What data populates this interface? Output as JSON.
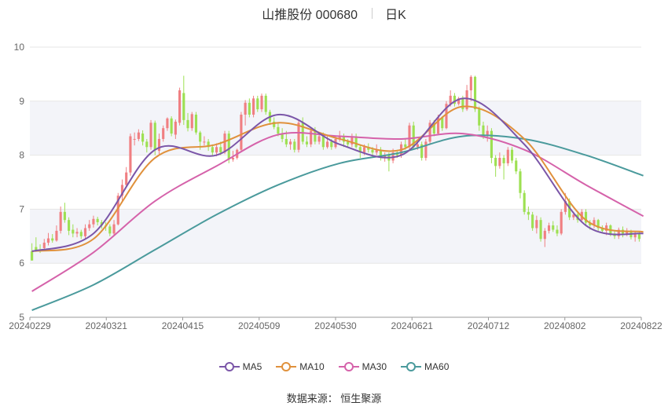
{
  "header": {
    "title": "山推股份 000680",
    "period": "日K"
  },
  "source": "数据来源： 恒生聚源",
  "colors": {
    "up": "#f07f82",
    "down": "#9de052",
    "MA5": "#7b56a8",
    "MA10": "#e0913c",
    "MA30": "#d562aa",
    "MA60": "#4a9a9c",
    "grid": "#e6e6e6",
    "band": "#f3f4f9",
    "axis": "#666666"
  },
  "chart_data": {
    "type": "candlestick",
    "ylim": [
      5,
      10
    ],
    "yticks": [
      "5",
      "6",
      "7",
      "8",
      "9",
      "10"
    ],
    "xlabels": [
      "20240229",
      "20240321",
      "20240415",
      "20240509",
      "20240530",
      "20240621",
      "20240712",
      "20240802",
      "20240822"
    ],
    "legend": [
      "MA5",
      "MA10",
      "MA30",
      "MA60"
    ],
    "candles": [
      [
        6.22,
        6.05,
        6.37,
        6.05
      ],
      [
        6.3,
        6.23,
        6.48,
        6.21
      ],
      [
        6.25,
        6.22,
        6.35,
        6.19
      ],
      [
        6.28,
        6.38,
        6.45,
        6.25
      ],
      [
        6.38,
        6.46,
        6.56,
        6.33
      ],
      [
        6.46,
        6.42,
        6.54,
        6.38
      ],
      [
        6.42,
        6.6,
        6.7,
        6.4
      ],
      [
        6.6,
        6.95,
        7.05,
        6.55
      ],
      [
        6.95,
        6.8,
        7.12,
        6.75
      ],
      [
        6.8,
        6.6,
        6.85,
        6.52
      ],
      [
        6.62,
        6.55,
        6.72,
        6.48
      ],
      [
        6.55,
        6.58,
        6.65,
        6.48
      ],
      [
        6.58,
        6.5,
        6.62,
        6.45
      ],
      [
        6.5,
        6.65,
        6.72,
        6.46
      ],
      [
        6.65,
        6.72,
        6.8,
        6.6
      ],
      [
        6.72,
        6.82,
        6.88,
        6.66
      ],
      [
        6.82,
        6.76,
        6.86,
        6.7
      ],
      [
        6.76,
        6.7,
        6.8,
        6.64
      ],
      [
        6.7,
        6.68,
        6.76,
        6.6
      ],
      [
        6.68,
        6.55,
        6.72,
        6.5
      ],
      [
        6.55,
        6.72,
        6.8,
        6.5
      ],
      [
        6.72,
        7.25,
        7.3,
        6.7
      ],
      [
        7.25,
        7.45,
        7.55,
        7.12
      ],
      [
        7.45,
        7.68,
        7.78,
        7.4
      ],
      [
        7.68,
        8.35,
        8.4,
        7.62
      ],
      [
        8.3,
        8.3,
        8.42,
        8.18
      ],
      [
        8.3,
        8.42,
        8.48,
        8.26
      ],
      [
        8.4,
        8.25,
        8.46,
        8.18
      ],
      [
        8.25,
        8.15,
        8.3,
        8.05
      ],
      [
        8.15,
        8.6,
        8.65,
        8.1
      ],
      [
        8.6,
        8.1,
        8.64,
        8.0
      ],
      [
        8.08,
        8.3,
        8.4,
        8.02
      ],
      [
        8.3,
        8.5,
        8.55,
        8.25
      ],
      [
        8.5,
        8.68,
        8.7,
        8.45
      ],
      [
        8.68,
        8.4,
        8.72,
        8.35
      ],
      [
        8.38,
        8.62,
        8.66,
        8.3
      ],
      [
        8.6,
        9.2,
        9.25,
        8.55
      ],
      [
        9.15,
        8.65,
        9.47,
        8.56
      ],
      [
        8.65,
        8.5,
        8.78,
        8.44
      ],
      [
        8.5,
        8.76,
        8.8,
        8.45
      ],
      [
        8.75,
        8.42,
        8.8,
        8.38
      ],
      [
        8.42,
        8.25,
        8.45,
        8.1
      ],
      [
        8.25,
        8.25,
        8.35,
        8.18
      ],
      [
        8.25,
        8.15,
        8.3,
        8.08
      ],
      [
        8.15,
        8.05,
        8.2,
        7.98
      ],
      [
        8.05,
        8.15,
        8.22,
        7.98
      ],
      [
        8.15,
        8.05,
        8.25,
        8.0
      ],
      [
        8.05,
        8.4,
        8.45,
        8.02
      ],
      [
        8.4,
        7.92,
        8.45,
        7.85
      ],
      [
        7.92,
        7.95,
        8.08,
        7.88
      ],
      [
        7.95,
        8.1,
        8.12,
        7.92
      ],
      [
        8.1,
        8.75,
        8.8,
        8.08
      ],
      [
        8.75,
        8.97,
        9.02,
        8.55
      ],
      [
        8.97,
        8.75,
        9.05,
        8.7
      ],
      [
        8.75,
        9.05,
        9.1,
        8.7
      ],
      [
        9.05,
        8.85,
        9.1,
        8.8
      ],
      [
        8.85,
        9.1,
        9.14,
        8.8
      ],
      [
        9.1,
        8.8,
        9.14,
        8.75
      ],
      [
        8.8,
        8.62,
        8.84,
        8.56
      ],
      [
        8.62,
        8.52,
        8.7,
        8.48
      ],
      [
        8.52,
        8.4,
        8.6,
        8.35
      ],
      [
        8.4,
        8.3,
        8.5,
        8.24
      ],
      [
        8.3,
        8.2,
        8.45,
        8.15
      ],
      [
        8.2,
        8.25,
        8.3,
        8.1
      ],
      [
        8.25,
        8.1,
        8.3,
        8.05
      ],
      [
        8.1,
        8.6,
        8.65,
        8.05
      ],
      [
        8.6,
        8.25,
        8.7,
        8.2
      ],
      [
        8.25,
        8.2,
        8.35,
        8.15
      ],
      [
        8.2,
        8.45,
        8.5,
        8.15
      ],
      [
        8.45,
        8.25,
        8.52,
        8.2
      ],
      [
        8.25,
        8.35,
        8.4,
        8.2
      ],
      [
        8.35,
        8.15,
        8.42,
        8.1
      ],
      [
        8.15,
        8.25,
        8.35,
        8.12
      ],
      [
        8.25,
        8.15,
        8.3,
        8.1
      ],
      [
        8.15,
        8.3,
        8.35,
        8.12
      ],
      [
        8.3,
        8.35,
        8.45,
        8.25
      ],
      [
        8.35,
        8.25,
        8.4,
        8.15
      ],
      [
        8.25,
        8.2,
        8.3,
        8.15
      ],
      [
        8.2,
        8.35,
        8.4,
        8.15
      ],
      [
        8.35,
        8.15,
        8.4,
        8.12
      ],
      [
        8.15,
        8.05,
        8.2,
        7.95
      ],
      [
        8.05,
        8.15,
        8.2,
        8.0
      ],
      [
        8.15,
        8.1,
        8.22,
        8.05
      ],
      [
        8.1,
        8.05,
        8.15,
        7.95
      ],
      [
        8.05,
        8.1,
        8.2,
        8.0
      ],
      [
        8.1,
        7.95,
        8.15,
        7.9
      ],
      [
        7.95,
        8.0,
        8.05,
        7.88
      ],
      [
        8.0,
        7.9,
        8.05,
        7.7
      ],
      [
        7.9,
        8.05,
        8.12,
        7.85
      ],
      [
        8.05,
        8.0,
        8.1,
        7.95
      ],
      [
        8.0,
        8.2,
        8.25,
        7.95
      ],
      [
        8.2,
        8.15,
        8.3,
        8.1
      ],
      [
        8.15,
        8.55,
        8.6,
        8.1
      ],
      [
        8.55,
        8.15,
        8.62,
        8.1
      ],
      [
        8.15,
        8.2,
        8.25,
        8.1
      ],
      [
        8.2,
        7.95,
        8.25,
        7.9
      ],
      [
        7.95,
        8.25,
        8.3,
        7.9
      ],
      [
        8.25,
        8.6,
        8.65,
        8.2
      ],
      [
        8.6,
        8.4,
        8.65,
        8.35
      ],
      [
        8.4,
        8.7,
        8.75,
        8.38
      ],
      [
        8.7,
        8.5,
        8.72,
        8.45
      ],
      [
        8.5,
        8.95,
        9.0,
        8.48
      ],
      [
        8.95,
        9.1,
        9.2,
        8.9
      ],
      [
        9.1,
        8.95,
        9.15,
        8.9
      ],
      [
        8.95,
        9.05,
        9.08,
        8.92
      ],
      [
        9.05,
        8.85,
        9.1,
        8.8
      ],
      [
        8.85,
        9.2,
        9.3,
        8.82
      ],
      [
        9.2,
        9.45,
        9.48,
        9.0
      ],
      [
        9.45,
        8.85,
        9.47,
        8.8
      ],
      [
        8.85,
        8.55,
        8.9,
        8.45
      ],
      [
        8.55,
        8.35,
        8.62,
        8.3
      ],
      [
        8.35,
        8.45,
        8.55,
        8.25
      ],
      [
        8.45,
        7.95,
        8.5,
        7.85
      ],
      [
        7.95,
        7.8,
        8.0,
        7.6
      ],
      [
        7.8,
        7.95,
        8.05,
        7.75
      ],
      [
        7.95,
        7.85,
        8.0,
        7.55
      ],
      [
        7.85,
        8.1,
        8.15,
        7.8
      ],
      [
        8.1,
        7.9,
        8.15,
        7.85
      ],
      [
        7.9,
        7.7,
        7.95,
        7.65
      ],
      [
        7.7,
        7.3,
        7.75,
        7.2
      ],
      [
        7.3,
        6.95,
        7.35,
        6.9
      ],
      [
        6.95,
        6.9,
        7.05,
        6.8
      ],
      [
        6.9,
        6.65,
        6.95,
        6.6
      ],
      [
        6.65,
        6.8,
        6.88,
        6.55
      ],
      [
        6.8,
        6.45,
        6.85,
        6.4
      ],
      [
        6.45,
        6.6,
        6.65,
        6.3
      ],
      [
        6.6,
        6.7,
        6.75,
        6.55
      ],
      [
        6.7,
        6.62,
        6.78,
        6.58
      ],
      [
        6.62,
        6.55,
        6.7,
        6.5
      ],
      [
        6.55,
        6.95,
        7.0,
        6.52
      ],
      [
        6.95,
        7.15,
        7.3,
        6.9
      ],
      [
        7.15,
        6.85,
        7.2,
        6.8
      ],
      [
        6.85,
        6.9,
        6.95,
        6.8
      ],
      [
        6.9,
        6.8,
        6.96,
        6.75
      ],
      [
        6.8,
        6.95,
        7.0,
        6.75
      ],
      [
        6.95,
        6.75,
        7.0,
        6.7
      ],
      [
        6.75,
        6.7,
        6.8,
        6.62
      ],
      [
        6.7,
        6.8,
        6.85,
        6.65
      ],
      [
        6.8,
        6.65,
        6.82,
        6.6
      ],
      [
        6.65,
        6.6,
        6.7,
        6.55
      ],
      [
        6.6,
        6.7,
        6.75,
        6.52
      ],
      [
        6.7,
        6.55,
        6.72,
        6.5
      ],
      [
        6.55,
        6.5,
        6.6,
        6.45
      ],
      [
        6.5,
        6.62,
        6.66,
        6.45
      ],
      [
        6.62,
        6.55,
        6.68,
        6.48
      ],
      [
        6.55,
        6.6,
        6.65,
        6.5
      ],
      [
        6.6,
        6.48,
        6.62,
        6.44
      ],
      [
        6.48,
        6.55,
        6.6,
        6.4
      ],
      [
        6.55,
        6.45,
        6.58,
        6.4
      ]
    ],
    "ma_anchor_index": [
      0,
      15,
      30,
      45,
      60,
      75,
      90,
      105,
      120,
      135,
      149
    ],
    "ma": {
      "MA5": [
        6.22,
        6.55,
        8.1,
        8.0,
        8.75,
        8.2,
        8.0,
        9.05,
        8.2,
        6.7,
        6.55
      ],
      "MA10": [
        6.22,
        6.45,
        7.95,
        8.2,
        8.6,
        8.3,
        8.1,
        8.9,
        8.3,
        6.8,
        6.58
      ],
      "MA30": [
        5.48,
        6.2,
        7.15,
        7.8,
        8.38,
        8.35,
        8.3,
        8.4,
        8.1,
        7.45,
        6.87
      ],
      "MA60": [
        5.13,
        5.6,
        6.25,
        6.9,
        7.45,
        7.85,
        8.05,
        8.35,
        8.3,
        8.0,
        7.62
      ]
    }
  }
}
